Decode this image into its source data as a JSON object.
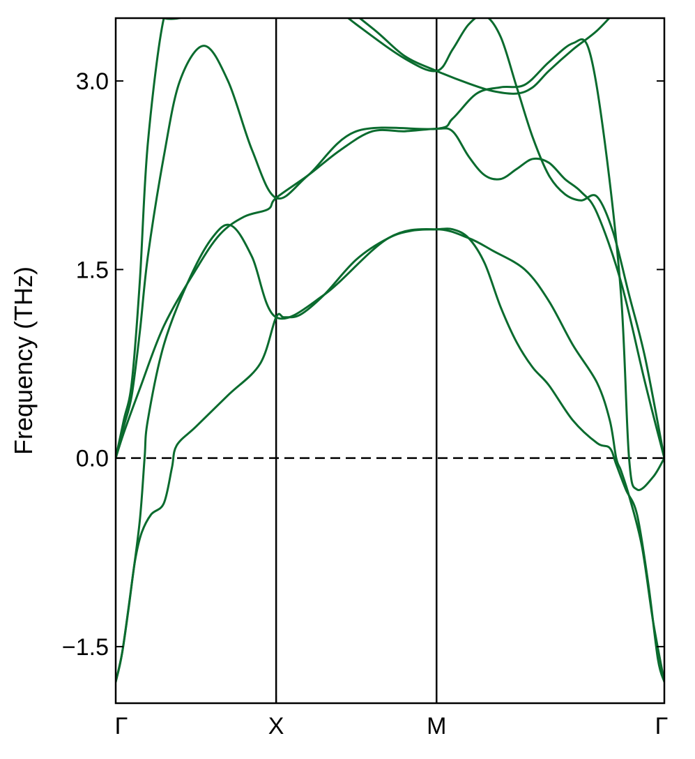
{
  "chart_data": {
    "type": "line",
    "title": "",
    "xlabel": "",
    "ylabel": "Frequency (THz)",
    "ylim": [
      -1.95,
      3.5
    ],
    "yticks": [
      {
        "value": -1.5,
        "label": "−1.5"
      },
      {
        "value": 0.0,
        "label": "0.0"
      },
      {
        "value": 1.5,
        "label": "1.5"
      },
      {
        "value": 3.0,
        "label": "3.0"
      }
    ],
    "xlim": [
      0,
      3.42
    ],
    "high_symmetry_points": [
      {
        "x": 0,
        "label": "Γ"
      },
      {
        "x": 1,
        "label": "X"
      },
      {
        "x": 2,
        "label": "M"
      },
      {
        "x": 3.42,
        "label": "Γ"
      }
    ],
    "zero_line": {
      "y": 0,
      "style": "dashed"
    },
    "line_color": "#0a6b2e",
    "series": [
      {
        "values": [
          [
            0,
            -1.78
          ],
          [
            0.04,
            -1.55
          ],
          [
            0.08,
            -1.2
          ],
          [
            0.12,
            -0.82
          ],
          [
            0.16,
            -0.6
          ],
          [
            0.22,
            -0.45
          ],
          [
            0.3,
            -0.36
          ],
          [
            0.35,
            -0.08
          ],
          [
            0.38,
            0.1
          ],
          [
            0.5,
            0.25
          ],
          [
            0.7,
            0.5
          ],
          [
            0.9,
            0.75
          ],
          [
            1,
            1.12
          ],
          [
            1.05,
            1.12
          ],
          [
            1.15,
            1.14
          ],
          [
            1.3,
            1.3
          ],
          [
            1.5,
            1.58
          ],
          [
            1.7,
            1.75
          ],
          [
            1.85,
            1.81
          ],
          [
            2,
            1.82
          ],
          [
            2.1,
            1.82
          ],
          [
            2.2,
            1.75
          ],
          [
            2.3,
            1.55
          ],
          [
            2.4,
            1.2
          ],
          [
            2.5,
            0.92
          ],
          [
            2.6,
            0.72
          ],
          [
            2.7,
            0.58
          ],
          [
            2.85,
            0.3
          ],
          [
            3.0,
            0.12
          ],
          [
            3.08,
            0.08
          ],
          [
            3.12,
            -0.05
          ],
          [
            3.18,
            -0.25
          ],
          [
            3.25,
            -0.45
          ],
          [
            3.32,
            -1.0
          ],
          [
            3.38,
            -1.6
          ],
          [
            3.42,
            -1.78
          ]
        ]
      },
      {
        "values": [
          [
            0,
            -1.78
          ],
          [
            0.04,
            -1.55
          ],
          [
            0.1,
            -1.0
          ],
          [
            0.15,
            -0.5
          ],
          [
            0.18,
            0.0
          ],
          [
            0.2,
            0.3
          ],
          [
            0.3,
            0.9
          ],
          [
            0.45,
            1.4
          ],
          [
            0.6,
            1.75
          ],
          [
            0.72,
            1.85
          ],
          [
            0.85,
            1.6
          ],
          [
            1,
            1.12
          ],
          [
            1.3,
            1.3
          ],
          [
            1.7,
            1.75
          ],
          [
            2,
            1.82
          ],
          [
            2.2,
            1.75
          ],
          [
            2.35,
            1.65
          ],
          [
            2.55,
            1.5
          ],
          [
            2.7,
            1.25
          ],
          [
            2.85,
            0.9
          ],
          [
            3.0,
            0.6
          ],
          [
            3.08,
            0.3
          ],
          [
            3.12,
            0.0
          ],
          [
            3.15,
            -0.1
          ],
          [
            3.2,
            -0.3
          ],
          [
            3.28,
            -0.7
          ],
          [
            3.35,
            -1.3
          ],
          [
            3.42,
            -1.78
          ]
        ]
      },
      {
        "values": [
          [
            0,
            0
          ],
          [
            0.05,
            0.2
          ],
          [
            0.15,
            0.55
          ],
          [
            0.3,
            1.05
          ],
          [
            0.5,
            1.5
          ],
          [
            0.65,
            1.78
          ],
          [
            0.8,
            1.92
          ],
          [
            0.95,
            1.98
          ],
          [
            1,
            2.07
          ],
          [
            1.2,
            2.25
          ],
          [
            1.4,
            2.45
          ],
          [
            1.6,
            2.6
          ],
          [
            1.8,
            2.6
          ],
          [
            2,
            2.62
          ],
          [
            2.1,
            2.6
          ],
          [
            2.2,
            2.4
          ],
          [
            2.3,
            2.25
          ],
          [
            2.4,
            2.22
          ],
          [
            2.5,
            2.3
          ],
          [
            2.6,
            2.38
          ],
          [
            2.7,
            2.35
          ],
          [
            2.8,
            2.22
          ],
          [
            2.9,
            2.12
          ],
          [
            3.0,
            1.95
          ],
          [
            3.15,
            1.4
          ],
          [
            3.3,
            0.6
          ],
          [
            3.42,
            0.0
          ]
        ]
      },
      {
        "values": [
          [
            0,
            0
          ],
          [
            0.05,
            0.25
          ],
          [
            0.1,
            0.5
          ],
          [
            0.15,
            1.0
          ],
          [
            0.2,
            1.6
          ],
          [
            0.3,
            2.4
          ],
          [
            0.4,
            3.0
          ],
          [
            0.55,
            3.28
          ],
          [
            0.7,
            3.0
          ],
          [
            0.85,
            2.45
          ],
          [
            1,
            2.07
          ],
          [
            1.2,
            2.25
          ],
          [
            1.5,
            2.6
          ],
          [
            2,
            2.62
          ],
          [
            2.1,
            2.7
          ],
          [
            2.25,
            2.9
          ],
          [
            2.4,
            2.95
          ],
          [
            2.55,
            2.97
          ],
          [
            2.7,
            3.15
          ],
          [
            2.85,
            3.3
          ],
          [
            2.95,
            3.25
          ],
          [
            3.05,
            2.5
          ],
          [
            3.15,
            1.3
          ],
          [
            3.2,
            0.0
          ],
          [
            3.25,
            -0.25
          ],
          [
            3.35,
            -0.15
          ],
          [
            3.42,
            0.0
          ]
        ]
      },
      {
        "values": [
          [
            0,
            0
          ],
          [
            0.05,
            0.3
          ],
          [
            0.1,
            0.6
          ],
          [
            0.15,
            1.4
          ],
          [
            0.2,
            2.5
          ],
          [
            0.3,
            3.5
          ],
          [
            0.4,
            3.65
          ],
          [
            0.5,
            3.9
          ],
          [
            0.6,
            4.02
          ],
          [
            0.8,
            3.88
          ],
          [
            1,
            3.83
          ],
          [
            1.2,
            3.75
          ],
          [
            1.5,
            3.45
          ],
          [
            1.8,
            3.18
          ],
          [
            2,
            3.08
          ],
          [
            2.1,
            3.25
          ],
          [
            2.2,
            3.45
          ],
          [
            2.3,
            3.52
          ],
          [
            2.4,
            3.35
          ],
          [
            2.5,
            2.95
          ],
          [
            2.6,
            2.55
          ],
          [
            2.7,
            2.25
          ],
          [
            2.8,
            2.1
          ],
          [
            2.9,
            2.05
          ],
          [
            3.0,
            2.08
          ],
          [
            3.1,
            1.8
          ],
          [
            3.2,
            1.3
          ],
          [
            3.3,
            0.8
          ],
          [
            3.42,
            0.0
          ]
        ]
      },
      {
        "values": [
          [
            0,
            3.83
          ],
          [
            0.1,
            3.75
          ],
          [
            0.2,
            3.6
          ],
          [
            0.3,
            3.5
          ],
          [
            0.45,
            3.52
          ],
          [
            0.6,
            3.65
          ],
          [
            0.8,
            3.8
          ],
          [
            1,
            3.83
          ],
          [
            1.3,
            3.7
          ],
          [
            1.6,
            3.42
          ],
          [
            1.8,
            3.2
          ],
          [
            2,
            3.08
          ],
          [
            2.2,
            2.98
          ],
          [
            2.35,
            2.92
          ],
          [
            2.5,
            2.9
          ],
          [
            2.6,
            2.95
          ],
          [
            2.7,
            3.08
          ],
          [
            2.85,
            3.25
          ],
          [
            3.0,
            3.4
          ],
          [
            3.15,
            3.6
          ],
          [
            3.3,
            3.78
          ],
          [
            3.42,
            3.83
          ]
        ]
      }
    ]
  }
}
